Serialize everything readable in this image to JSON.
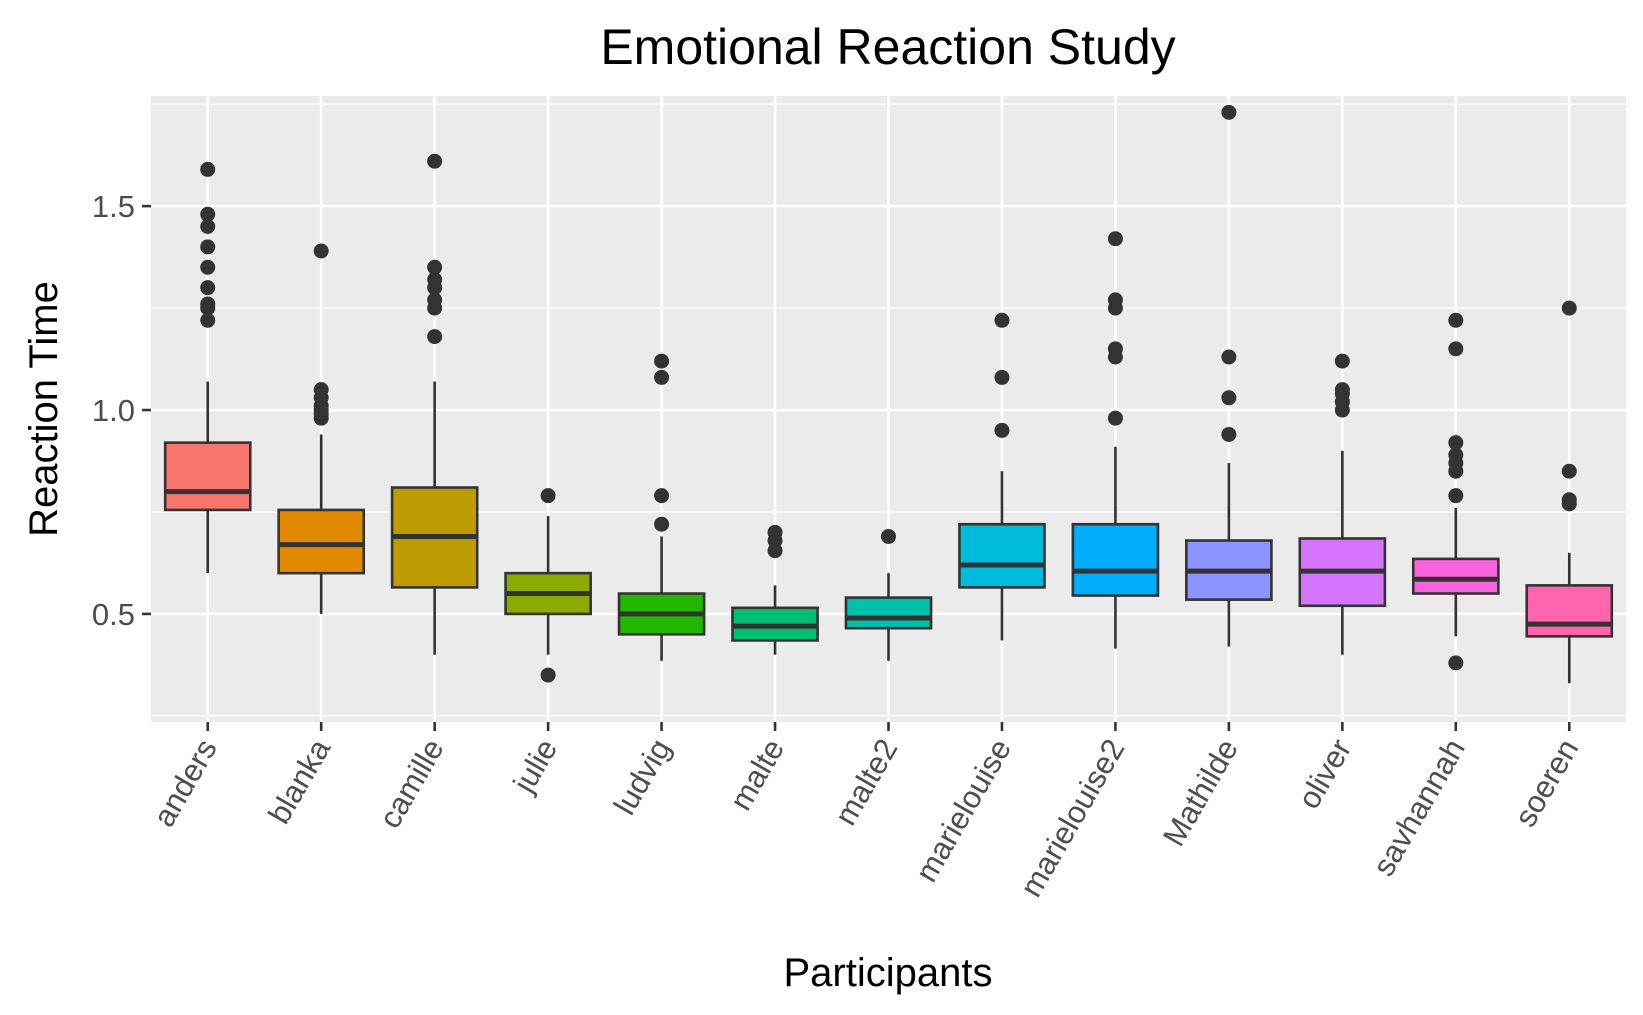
{
  "chart_data": {
    "type": "box",
    "title": "Emotional Reaction Study",
    "xlabel": "Participants",
    "ylabel": "Reaction Time",
    "ylim": [
      0.235,
      1.77
    ],
    "yticks": [
      0.5,
      1.0,
      1.5
    ],
    "ytick_labels": [
      "0.5",
      "1.0",
      "1.5"
    ],
    "grid": true,
    "legend": "none",
    "categories": [
      "anders",
      "blanka",
      "camille",
      "julie",
      "ludvig",
      "malte",
      "malte2",
      "marielouise",
      "marielouise2",
      "Mathilde",
      "oliver",
      "savhannah",
      "soeren"
    ],
    "series": [
      {
        "q1": 0.755,
        "median": 0.8,
        "q3": 0.92,
        "whisker_low": 0.6,
        "whisker_high": 1.07,
        "outliers": [
          1.22,
          1.25,
          1.26,
          1.3,
          1.35,
          1.4,
          1.45,
          1.48,
          1.59
        ],
        "color": "#F8766D"
      },
      {
        "q1": 0.6,
        "median": 0.67,
        "q3": 0.755,
        "whisker_low": 0.5,
        "whisker_high": 0.94,
        "outliers": [
          0.98,
          0.99,
          1.0,
          1.01,
          1.03,
          1.05,
          1.39
        ],
        "color": "#E18A00"
      },
      {
        "q1": 0.565,
        "median": 0.69,
        "q3": 0.81,
        "whisker_low": 0.4,
        "whisker_high": 1.07,
        "outliers": [
          1.18,
          1.25,
          1.27,
          1.3,
          1.32,
          1.35,
          1.61
        ],
        "color": "#BE9C00"
      },
      {
        "q1": 0.5,
        "median": 0.55,
        "q3": 0.6,
        "whisker_low": 0.4,
        "whisker_high": 0.74,
        "outliers": [
          0.35,
          0.79
        ],
        "color": "#8CAB00"
      },
      {
        "q1": 0.45,
        "median": 0.5,
        "q3": 0.55,
        "whisker_low": 0.385,
        "whisker_high": 0.69,
        "outliers": [
          0.72,
          0.79,
          1.08,
          1.12
        ],
        "color": "#24B700"
      },
      {
        "q1": 0.435,
        "median": 0.47,
        "q3": 0.515,
        "whisker_low": 0.4,
        "whisker_high": 0.57,
        "outliers": [
          0.655,
          0.68,
          0.7
        ],
        "color": "#00BE70"
      },
      {
        "q1": 0.465,
        "median": 0.49,
        "q3": 0.54,
        "whisker_low": 0.385,
        "whisker_high": 0.6,
        "outliers": [
          0.69
        ],
        "color": "#00C1AB"
      },
      {
        "q1": 0.565,
        "median": 0.62,
        "q3": 0.72,
        "whisker_low": 0.435,
        "whisker_high": 0.85,
        "outliers": [
          0.95,
          1.08,
          1.22
        ],
        "color": "#00BBDA"
      },
      {
        "q1": 0.545,
        "median": 0.605,
        "q3": 0.72,
        "whisker_low": 0.415,
        "whisker_high": 0.91,
        "outliers": [
          0.98,
          1.13,
          1.15,
          1.25,
          1.27,
          1.42
        ],
        "color": "#00ACFC"
      },
      {
        "q1": 0.535,
        "median": 0.605,
        "q3": 0.68,
        "whisker_low": 0.42,
        "whisker_high": 0.87,
        "outliers": [
          0.94,
          1.03,
          1.13,
          1.73
        ],
        "color": "#8B93FF"
      },
      {
        "q1": 0.52,
        "median": 0.605,
        "q3": 0.685,
        "whisker_low": 0.4,
        "whisker_high": 0.9,
        "outliers": [
          1.0,
          1.02,
          1.04,
          1.05,
          1.12
        ],
        "color": "#D575FE"
      },
      {
        "q1": 0.55,
        "median": 0.585,
        "q3": 0.635,
        "whisker_low": 0.445,
        "whisker_high": 0.76,
        "outliers": [
          0.38,
          0.79,
          0.85,
          0.87,
          0.89,
          0.92,
          1.15,
          1.22
        ],
        "color": "#F962DD"
      },
      {
        "q1": 0.445,
        "median": 0.475,
        "q3": 0.57,
        "whisker_low": 0.33,
        "whisker_high": 0.65,
        "outliers": [
          0.77,
          0.78,
          0.85,
          1.25
        ],
        "color": "#FF65AC"
      }
    ]
  }
}
